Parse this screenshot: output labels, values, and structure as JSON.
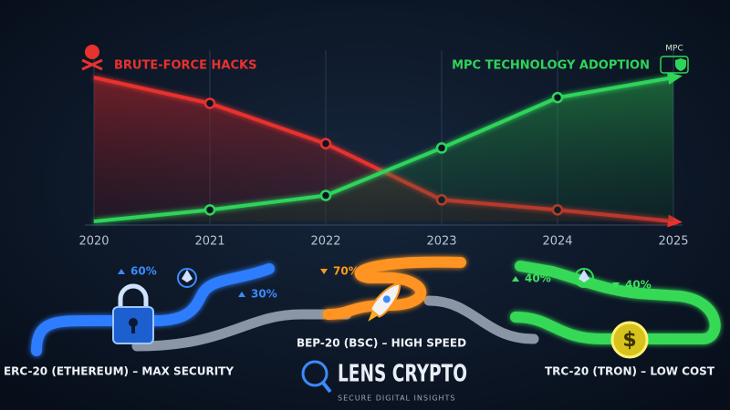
{
  "chart_data": {
    "type": "line",
    "categories": [
      "2020",
      "2021",
      "2022",
      "2023",
      "2024",
      "2025"
    ],
    "series": [
      {
        "name": "BRUTE-FORCE HACKS",
        "color": "#e8322e",
        "values": [
          100,
          82,
          54,
          15,
          8,
          0
        ]
      },
      {
        "name": "MPC TECHNOLOGY ADOPTION",
        "color": "#2fd45a",
        "values": [
          0,
          8,
          18,
          51,
          86,
          100
        ]
      }
    ],
    "ylim": [
      0,
      100
    ],
    "grid": true
  },
  "icon_label": "MPC",
  "networks": [
    {
      "label": "ERC-20 (ETHEREUM) – MAX SECURITY",
      "color": "#3a8bff",
      "stats": [
        "60%",
        "30%"
      ]
    },
    {
      "label": "BEP-20 (BSC) – HIGH SPEED",
      "color": "#ff9a1f",
      "stats": [
        "70%"
      ]
    },
    {
      "label": "TRC-20 (TRON) – LOW COST",
      "color": "#3fe05e",
      "stats": [
        "40%",
        "40%"
      ]
    }
  ],
  "logo": {
    "name": "LENS CRYPTO",
    "tagline": "SECURE DIGITAL INSIGHTS"
  }
}
